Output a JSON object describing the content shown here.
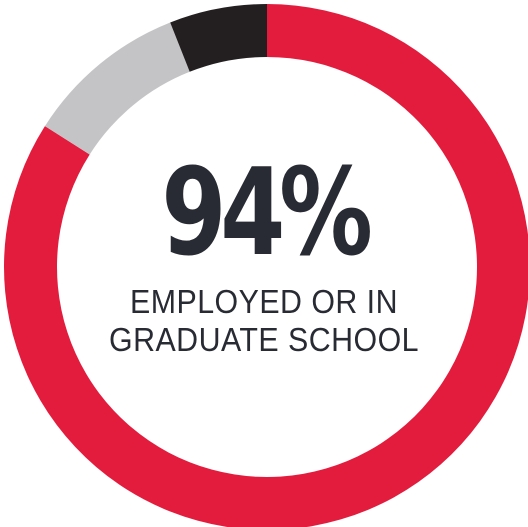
{
  "chart_data": {
    "type": "pie",
    "categories": [
      "segment-1",
      "segment-2",
      "segment-3"
    ],
    "values": [
      84,
      10,
      6
    ],
    "colors": [
      "#e31c3d",
      "#c4c4c6",
      "#231f20"
    ],
    "start_angle_deg": 0,
    "direction": "clockwise",
    "donut": true,
    "title": "",
    "xlabel": "",
    "ylabel": ""
  },
  "stat": {
    "value": "94%",
    "caption_line1": "EMPLOYED OR IN",
    "caption_line2": "GRADUATE SCHOOL"
  },
  "colors": {
    "text": "#282b33",
    "background": "#ffffff"
  }
}
